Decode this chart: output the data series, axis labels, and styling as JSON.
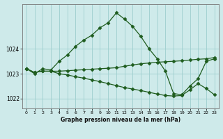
{
  "title": "Graphe pression niveau de la mer (hPa)",
  "bg_color": "#ceeaea",
  "grid_color": "#9ecece",
  "line_color": "#1e5c1e",
  "marker": "D",
  "markersize": 2.5,
  "linewidth": 0.9,
  "xlim": [
    -0.5,
    23.5
  ],
  "ylim": [
    1021.6,
    1025.8
  ],
  "yticks": [
    1022,
    1023,
    1024
  ],
  "xticks": [
    0,
    1,
    2,
    3,
    4,
    5,
    6,
    7,
    8,
    9,
    10,
    11,
    12,
    13,
    14,
    15,
    16,
    17,
    18,
    19,
    20,
    21,
    22,
    23
  ],
  "series1": [
    1023.2,
    1023.0,
    1023.2,
    1023.15,
    1023.5,
    1023.75,
    1024.1,
    1024.35,
    1024.55,
    1024.85,
    1025.05,
    1025.45,
    1025.2,
    1024.9,
    1024.5,
    1024.0,
    1023.6,
    1023.1,
    1022.2,
    1022.15,
    1022.5,
    1022.8,
    1023.5,
    1023.6
  ],
  "series2": [
    1023.2,
    1023.05,
    1023.1,
    1023.1,
    1023.1,
    1023.12,
    1023.14,
    1023.16,
    1023.18,
    1023.2,
    1023.22,
    1023.24,
    1023.3,
    1023.35,
    1023.4,
    1023.43,
    1023.46,
    1023.48,
    1023.5,
    1023.52,
    1023.55,
    1023.58,
    1023.6,
    1023.65
  ],
  "series3": [
    1023.2,
    1023.05,
    1023.1,
    1023.1,
    1023.0,
    1022.95,
    1022.88,
    1022.82,
    1022.75,
    1022.68,
    1022.6,
    1022.52,
    1022.44,
    1022.38,
    1022.32,
    1022.25,
    1022.18,
    1022.12,
    1022.1,
    1022.12,
    1022.35,
    1022.6,
    1022.4,
    1022.15
  ]
}
